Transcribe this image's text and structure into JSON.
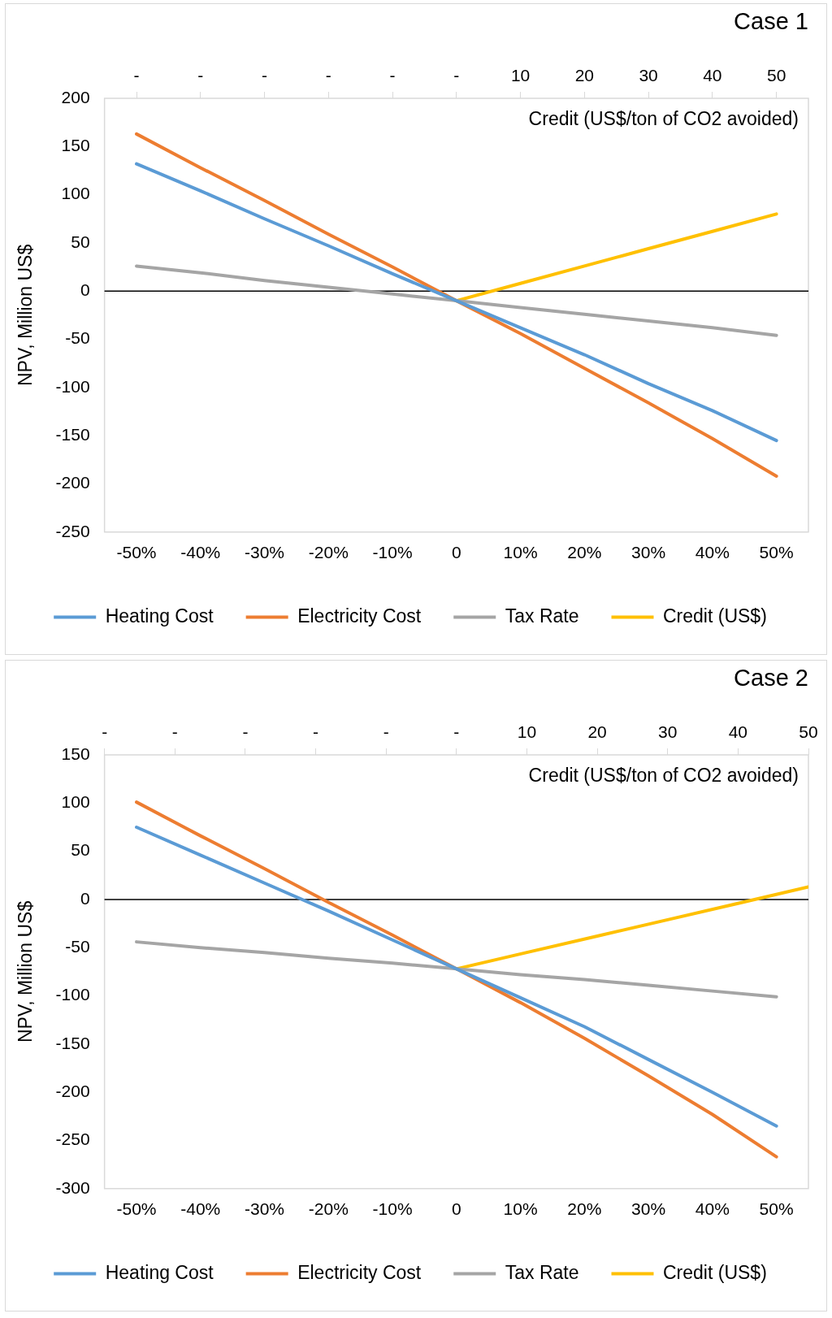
{
  "chart_data": [
    {
      "type": "line",
      "title": "Case 1",
      "ylabel": "NPV, Million US$",
      "x2label": "Credit (US$/ton of CO2 avoided)",
      "categories": [
        "-50%",
        "-40%",
        "-30%",
        "-20%",
        "-10%",
        "0",
        "10%",
        "20%",
        "30%",
        "40%",
        "50%"
      ],
      "ylim": [
        -250,
        200
      ],
      "yticks": [
        -250,
        -200,
        -150,
        -100,
        -50,
        0,
        50,
        100,
        150,
        200
      ],
      "x2lim": [
        -55,
        55
      ],
      "x2ticks": [
        {
          "value": -50,
          "label": "-"
        },
        {
          "value": -40,
          "label": "-"
        },
        {
          "value": -30,
          "label": "-"
        },
        {
          "value": -20,
          "label": "-"
        },
        {
          "value": -10,
          "label": "-"
        },
        {
          "value": 0,
          "label": "-"
        },
        10,
        20,
        30,
        40,
        50
      ],
      "series": [
        {
          "name": "Heating Cost",
          "color": "#5b9bd5",
          "values": [
            132,
            104,
            75,
            47,
            18,
            -10,
            -38,
            -66,
            -96,
            -124,
            -155
          ]
        },
        {
          "name": "Electricity Cost",
          "color": "#ed7d31",
          "values": [
            163,
            128,
            94,
            59,
            25,
            -10,
            -44,
            -80,
            -116,
            -153,
            -192
          ]
        },
        {
          "name": "Tax Rate",
          "color": "#a5a5a5",
          "values": [
            26,
            19,
            11,
            4,
            -3,
            -10,
            -17,
            -24,
            -31,
            -38,
            -46
          ]
        },
        {
          "name": "Credit (US$)",
          "color": "#ffc000",
          "axis": "x2",
          "x": [
            0,
            10,
            20,
            30,
            40,
            50
          ],
          "values": [
            -10,
            8,
            26,
            44,
            62,
            80
          ]
        }
      ],
      "ref_lines": [
        {
          "axis": "y",
          "value": 0,
          "color": "#000000"
        }
      ],
      "grid": false,
      "legend": "bottom",
      "marker": "none",
      "line_style": "solid"
    },
    {
      "type": "line",
      "title": "Case 2",
      "ylabel": "NPV, Million US$",
      "x2label": "Credit (US$/ton of CO2 avoided)",
      "categories": [
        "-50%",
        "-40%",
        "-30%",
        "-20%",
        "-10%",
        "0",
        "10%",
        "20%",
        "30%",
        "40%",
        "50%"
      ],
      "ylim": [
        -300,
        150
      ],
      "yticks": [
        -300,
        -250,
        -200,
        -150,
        -100,
        -50,
        0,
        50,
        100,
        150
      ],
      "x2lim": [
        -50,
        50
      ],
      "x2ticks": [
        {
          "value": -50,
          "label": "-"
        },
        {
          "value": -40,
          "label": "-"
        },
        {
          "value": -30,
          "label": "-"
        },
        {
          "value": -20,
          "label": "-"
        },
        {
          "value": -10,
          "label": "-"
        },
        {
          "value": 0,
          "label": "-"
        },
        10,
        20,
        30,
        40,
        50
      ],
      "series": [
        {
          "name": "Heating Cost",
          "color": "#5b9bd5",
          "values": [
            75,
            46,
            17,
            -12,
            -42,
            -72,
            -102,
            -132,
            -166,
            -200,
            -235
          ]
        },
        {
          "name": "Electricity Cost",
          "color": "#ed7d31",
          "values": [
            101,
            66,
            32,
            -3,
            -37,
            -72,
            -107,
            -144,
            -183,
            -223,
            -267
          ]
        },
        {
          "name": "Tax Rate",
          "color": "#a5a5a5",
          "values": [
            -44,
            -50,
            -55,
            -61,
            -66,
            -72,
            -78,
            -83,
            -89,
            -95,
            -101
          ]
        },
        {
          "name": "Credit (US$)",
          "color": "#ffc000",
          "axis": "x2",
          "x": [
            0,
            10,
            20,
            30,
            40,
            50
          ],
          "values": [
            -72,
            -55,
            -38,
            -21,
            -4,
            13
          ]
        }
      ],
      "ref_lines": [
        {
          "axis": "y",
          "value": 0,
          "color": "#000000"
        }
      ],
      "grid": false,
      "legend": "bottom",
      "marker": "none",
      "line_style": "solid"
    }
  ]
}
